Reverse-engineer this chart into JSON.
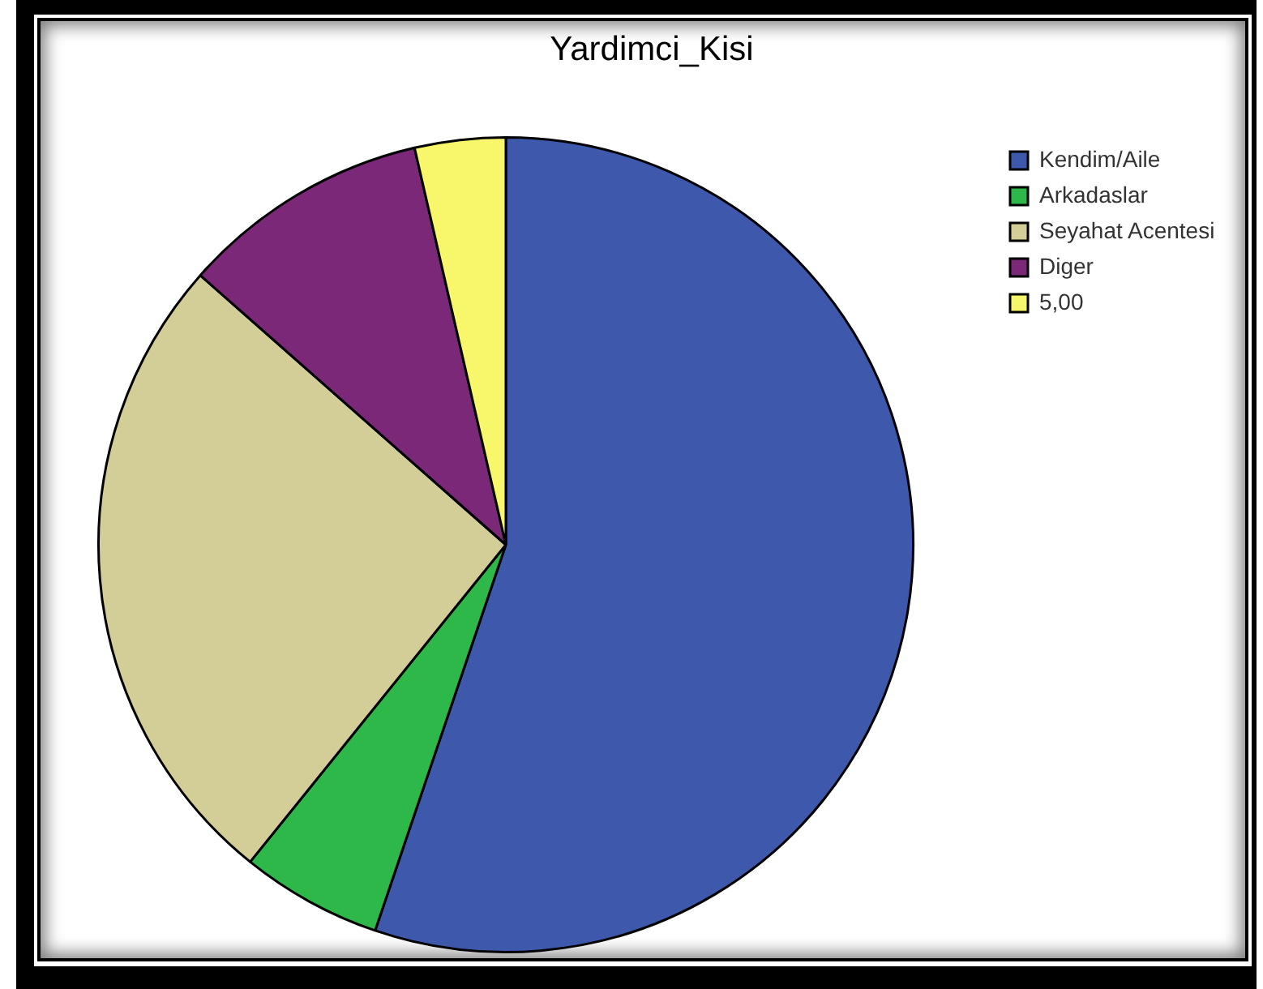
{
  "chart_data": {
    "type": "pie",
    "title": "Yardimci_Kisi",
    "categories": [
      "Kendim/Aile",
      "Arkadaslar",
      "Seyahat Acentesi",
      "Diger",
      "5,00"
    ],
    "values": [
      55.2,
      5.6,
      25.7,
      9.9,
      3.6
    ],
    "colors": [
      "#3e58ac",
      "#2eb84a",
      "#d3ce97",
      "#7b2878",
      "#f8f76b"
    ],
    "legend": "top right"
  }
}
